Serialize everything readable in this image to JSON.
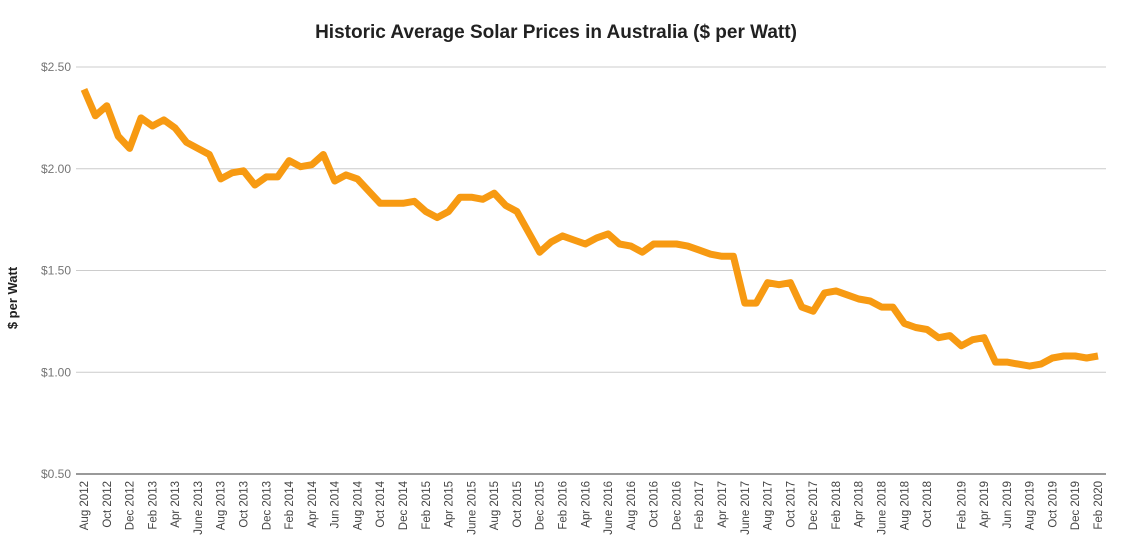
{
  "chart_data": {
    "type": "line",
    "title": "Historic Average Solar Prices in Australia ($ per Watt)",
    "ylabel": "$ per Watt",
    "xlabel": "",
    "ylim": [
      0.5,
      2.5
    ],
    "yticks": [
      0.5,
      1.0,
      1.5,
      2.0,
      2.5
    ],
    "ytick_labels": [
      "$0.50",
      "$1.00",
      "$1.50",
      "$2.00",
      "$2.50"
    ],
    "x_tick_labels": [
      "Aug 2012",
      "Oct 2012",
      "Dec 2012",
      "Feb 2013",
      "Apr 2013",
      "June 2013",
      "Aug 2013",
      "Oct 2013",
      "Dec 2013",
      "Feb 2014",
      "Apr 2014",
      "Jun 2014",
      "Aug 2014",
      "Oct 2014",
      "Dec 2014",
      "Feb 2015",
      "Apr 2015",
      "June 2015",
      "Aug 2015",
      "Oct 2015",
      "Dec 2015",
      "Feb 2016",
      "Apr 2016",
      "June 2016",
      "Aug 2016",
      "Oct 2016",
      "Dec 2016",
      "Feb 2017",
      "Apr 2017",
      "June 2017",
      "Aug 2017",
      "Oct 2017",
      "Dec 2017",
      "Feb 2018",
      "Apr 2018",
      "June 2018",
      "Aug 2018",
      "Oct 2018",
      "Feb 2019",
      "Apr 2019",
      "Jun 2019",
      "Aug 2019",
      "Oct 2019",
      "Dec 2019",
      "Feb 2020"
    ],
    "x": [
      "Aug 2012",
      "Sep 2012",
      "Oct 2012",
      "Nov 2012",
      "Dec 2012",
      "Jan 2013",
      "Feb 2013",
      "Mar 2013",
      "Apr 2013",
      "May 2013",
      "June 2013",
      "Jul 2013",
      "Aug 2013",
      "Sep 2013",
      "Oct 2013",
      "Nov 2013",
      "Dec 2013",
      "Jan 2014",
      "Feb 2014",
      "Mar 2014",
      "Apr 2014",
      "May 2014",
      "Jun 2014",
      "Jul 2014",
      "Aug 2014",
      "Sep 2014",
      "Oct 2014",
      "Nov 2014",
      "Dec 2014",
      "Jan 2015",
      "Feb 2015",
      "Mar 2015",
      "Apr 2015",
      "May 2015",
      "June 2015",
      "Jul 2015",
      "Aug 2015",
      "Sep 2015",
      "Oct 2015",
      "Nov 2015",
      "Dec 2015",
      "Jan 2016",
      "Feb 2016",
      "Mar 2016",
      "Apr 2016",
      "May 2016",
      "June 2016",
      "Jul 2016",
      "Aug 2016",
      "Sep 2016",
      "Oct 2016",
      "Nov 2016",
      "Dec 2016",
      "Jan 2017",
      "Feb 2017",
      "Mar 2017",
      "Apr 2017",
      "May 2017",
      "June 2017",
      "Jul 2017",
      "Aug 2017",
      "Sep 2017",
      "Oct 2017",
      "Nov 2017",
      "Dec 2017",
      "Jan 2018",
      "Feb 2018",
      "Mar 2018",
      "Apr 2018",
      "May 2018",
      "June 2018",
      "Jul 2018",
      "Aug 2018",
      "Sep 2018",
      "Oct 2018",
      "Nov 2018",
      "Jan 2019",
      "Feb 2019",
      "Mar 2019",
      "Apr 2019",
      "May 2019",
      "Jun 2019",
      "Jul 2019",
      "Aug 2019",
      "Sep 2019",
      "Oct 2019",
      "Nov 2019",
      "Dec 2019",
      "Jan 2020",
      "Feb 2020"
    ],
    "series": [
      {
        "values": [
          2.39,
          2.26,
          2.31,
          2.16,
          2.1,
          2.25,
          2.21,
          2.24,
          2.2,
          2.13,
          2.1,
          2.07,
          1.95,
          1.98,
          1.99,
          1.92,
          1.96,
          1.96,
          2.04,
          2.01,
          2.02,
          2.07,
          1.94,
          1.97,
          1.95,
          1.89,
          1.83,
          1.83,
          1.83,
          1.84,
          1.79,
          1.76,
          1.79,
          1.86,
          1.86,
          1.85,
          1.88,
          1.82,
          1.79,
          1.69,
          1.59,
          1.64,
          1.67,
          1.65,
          1.63,
          1.66,
          1.68,
          1.63,
          1.62,
          1.59,
          1.63,
          1.63,
          1.63,
          1.62,
          1.6,
          1.58,
          1.57,
          1.57,
          1.34,
          1.34,
          1.44,
          1.43,
          1.44,
          1.32,
          1.3,
          1.39,
          1.4,
          1.38,
          1.36,
          1.35,
          1.32,
          1.32,
          1.24,
          1.22,
          1.21,
          1.17,
          1.18,
          1.13,
          1.16,
          1.17,
          1.05,
          1.05,
          1.04,
          1.03,
          1.04,
          1.07,
          1.08,
          1.08,
          1.07,
          1.08
        ]
      }
    ],
    "line_color": "#F79A12",
    "grid": true,
    "legend": "none"
  }
}
